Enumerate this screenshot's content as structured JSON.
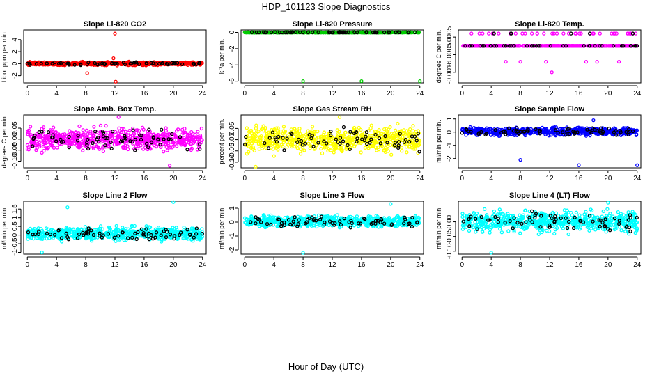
{
  "figure": {
    "title": "HDP_101123  Slope Diagnostics",
    "xlabel": "Hour of Day (UTC)"
  },
  "chart_data": [
    {
      "type": "scatter",
      "title": "Slope Li-820 CO2",
      "ylabel": "Licor ppm per min.",
      "color": "#ff0000",
      "xlim": [
        -0.5,
        24.5
      ],
      "ylim": [
        -3.2,
        5.6
      ],
      "xticks": [
        0,
        4,
        8,
        12,
        16,
        20,
        24
      ],
      "yticks": [
        -2,
        0,
        2,
        4
      ],
      "yticklabels": [
        "-2",
        "0",
        "2",
        "4"
      ],
      "band": [
        -0.35,
        0.35
      ],
      "n": 600,
      "outliers": [
        [
          12,
          5
        ],
        [
          12.1,
          -3
        ],
        [
          8.2,
          -1.6
        ],
        [
          11.8,
          0.9
        ]
      ],
      "seed": 1
    },
    {
      "type": "scatter",
      "title": "Slope Li-820 Pressure",
      "ylabel": "kPa per min.",
      "color": "#00cc00",
      "xlim": [
        -0.5,
        24.5
      ],
      "ylim": [
        -6.2,
        0.3
      ],
      "xticks": [
        0,
        4,
        8,
        12,
        16,
        20,
        24
      ],
      "yticks": [
        -6,
        -4,
        -2,
        0
      ],
      "yticklabels": [
        "-6",
        "-4",
        "-2",
        "0"
      ],
      "band": [
        -0.03,
        0.03
      ],
      "n": 500,
      "outliers": [
        [
          8,
          -6
        ],
        [
          16,
          -6
        ],
        [
          24,
          -6
        ]
      ],
      "seed": 2
    },
    {
      "type": "scatter",
      "title": "Slope Li-820 Temp.",
      "ylabel": "degrees C per min.",
      "color": "#ff00ff",
      "xlim": [
        -0.5,
        24.5
      ],
      "ylim": [
        -0.0021,
        0.0009
      ],
      "xticks": [
        0,
        4,
        8,
        12,
        16,
        20,
        24
      ],
      "yticks": [
        -0.0015,
        -0.0005,
        0.0005
      ],
      "yticklabels": [
        "-0.0015",
        "-0.0005",
        "0.0005"
      ],
      "levels": [
        0,
        0.0007,
        -0.0009,
        -0.0016
      ],
      "n": 420,
      "outliers": [
        [
          6,
          -0.0009
        ],
        [
          8,
          -0.0009
        ],
        [
          11.5,
          -0.0009
        ],
        [
          12.3,
          -0.0015
        ],
        [
          17,
          -0.0009
        ],
        [
          18.5,
          -0.0009
        ],
        [
          21.5,
          -0.0009
        ]
      ],
      "seed": 3
    },
    {
      "type": "scatter",
      "title": "Slope Amb. Box Temp.",
      "ylabel": "degrees C per min.",
      "color": "#ff00ff",
      "xlim": [
        -0.5,
        24.5
      ],
      "ylim": [
        -0.13,
        0.11
      ],
      "xticks": [
        0,
        4,
        8,
        12,
        16,
        20,
        24
      ],
      "yticks": [
        -0.1,
        -0.05,
        0,
        0.05
      ],
      "yticklabels": [
        "-0.10",
        "-0.05",
        "0.00",
        "0.05"
      ],
      "band": [
        -0.07,
        0.07
      ],
      "n": 620,
      "outliers": [
        [
          12.5,
          0.1
        ],
        [
          19.5,
          -0.12
        ]
      ],
      "seed": 4
    },
    {
      "type": "scatter",
      "title": "Slope Gas Stream RH",
      "ylabel": "percent per min.",
      "color": "#ffff00",
      "xlim": [
        -0.5,
        24.5
      ],
      "ylim": [
        -0.125,
        0.11
      ],
      "xticks": [
        0,
        4,
        8,
        12,
        16,
        20,
        24
      ],
      "yticks": [
        -0.1,
        -0.05,
        0,
        0.05
      ],
      "yticklabels": [
        "-0.10",
        "-0.05",
        "0.00",
        "0.05"
      ],
      "band": [
        -0.08,
        0.08
      ],
      "n": 620,
      "outliers": [
        [
          1.5,
          -0.12
        ],
        [
          13,
          0.1
        ]
      ],
      "seed": 5
    },
    {
      "type": "scatter",
      "title": "Slope Sample Flow",
      "ylabel": "ml/min per min.",
      "color": "#0000ff",
      "xlim": [
        -0.5,
        24.5
      ],
      "ylim": [
        -2.7,
        1.3
      ],
      "xticks": [
        0,
        4,
        8,
        12,
        16,
        20,
        24
      ],
      "yticks": [
        -2,
        -1,
        0,
        1
      ],
      "yticklabels": [
        "-2",
        "-1",
        "0",
        "1"
      ],
      "band": [
        -0.35,
        0.45
      ],
      "n": 620,
      "outliers": [
        [
          8,
          -2.1
        ],
        [
          16,
          -2.5
        ],
        [
          24,
          -2.5
        ],
        [
          18,
          0.9
        ]
      ],
      "seed": 6
    },
    {
      "type": "scatter",
      "title": "Slope Line 2 Flow",
      "ylabel": "ml/min per min.",
      "color": "#00ffff",
      "xlim": [
        -0.5,
        24.5
      ],
      "ylim": [
        -1.1,
        1.95
      ],
      "xticks": [
        0,
        4,
        8,
        12,
        16,
        20,
        24
      ],
      "yticks": [
        -1,
        -0.5,
        0,
        0.5,
        1,
        1.5
      ],
      "yticklabels": [
        "-1",
        "-0.5",
        "0",
        "0.5",
        "1",
        "1.5"
      ],
      "band": [
        -0.45,
        0.6
      ],
      "n": 620,
      "outliers": [
        [
          2,
          -1
        ],
        [
          20,
          1.9
        ],
        [
          5.5,
          1.6
        ]
      ],
      "seed": 7
    },
    {
      "type": "scatter",
      "title": "Slope Line 3 Flow",
      "ylabel": "ml/min per min.",
      "color": "#00ffff",
      "xlim": [
        -0.5,
        24.5
      ],
      "ylim": [
        -2.3,
        1.5
      ],
      "xticks": [
        0,
        4,
        8,
        12,
        16,
        20,
        24
      ],
      "yticks": [
        -2,
        -1,
        0,
        1
      ],
      "yticklabels": [
        "-2",
        "-1",
        "0",
        "1"
      ],
      "band": [
        -0.5,
        0.6
      ],
      "n": 620,
      "outliers": [
        [
          8,
          -2.2
        ],
        [
          20,
          1.3
        ]
      ],
      "seed": 8
    },
    {
      "type": "scatter",
      "title": "Slope Line 4 (LT) Flow",
      "ylabel": "ml/min per min.",
      "color": "#00ffff",
      "xlim": [
        -0.5,
        24.5
      ],
      "ylim": [
        -0.11,
        0.07
      ],
      "xticks": [
        0,
        4,
        8,
        12,
        16,
        20,
        24
      ],
      "yticks": [
        -0.1,
        -0.05,
        0
      ],
      "yticklabels": [
        "-0.10",
        "-0.05",
        "0.00"
      ],
      "band": [
        -0.05,
        0.05
      ],
      "n": 620,
      "outliers": [
        [
          4,
          -0.105
        ],
        [
          20,
          0.065
        ]
      ],
      "seed": 9
    }
  ]
}
